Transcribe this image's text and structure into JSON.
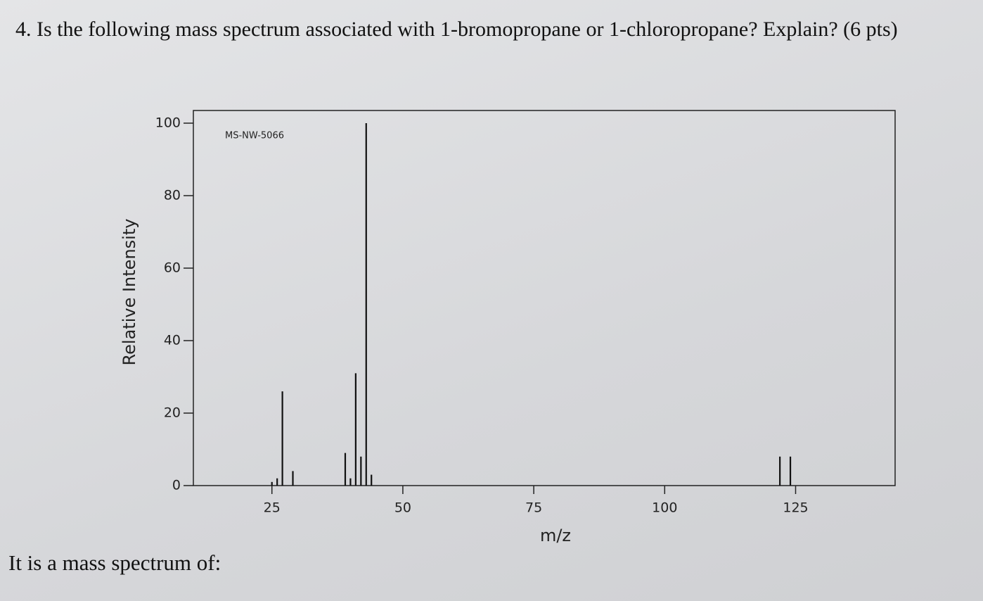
{
  "question": "4. Is the following mass spectrum associated with 1-bromopropane or 1-chloropropane? Explain? (6 pts)",
  "prompt": "It is a mass spectrum of:",
  "chart_data": {
    "type": "bar",
    "annotation": "MS-NW-5066",
    "xlabel": "m/z",
    "ylabel": "Relative Intensity",
    "x": [
      25,
      26,
      27,
      29,
      39,
      40,
      41,
      42,
      43,
      44,
      122,
      124
    ],
    "values": [
      1,
      2,
      26,
      4,
      9,
      2,
      31,
      8,
      100,
      3,
      8,
      8
    ],
    "color": "#111111",
    "xlim": [
      10,
      144
    ],
    "xticks": [
      25,
      50,
      75,
      100,
      125
    ],
    "ylim": [
      0,
      100
    ],
    "yticks": [
      0,
      20,
      40,
      60,
      80,
      100
    ]
  }
}
